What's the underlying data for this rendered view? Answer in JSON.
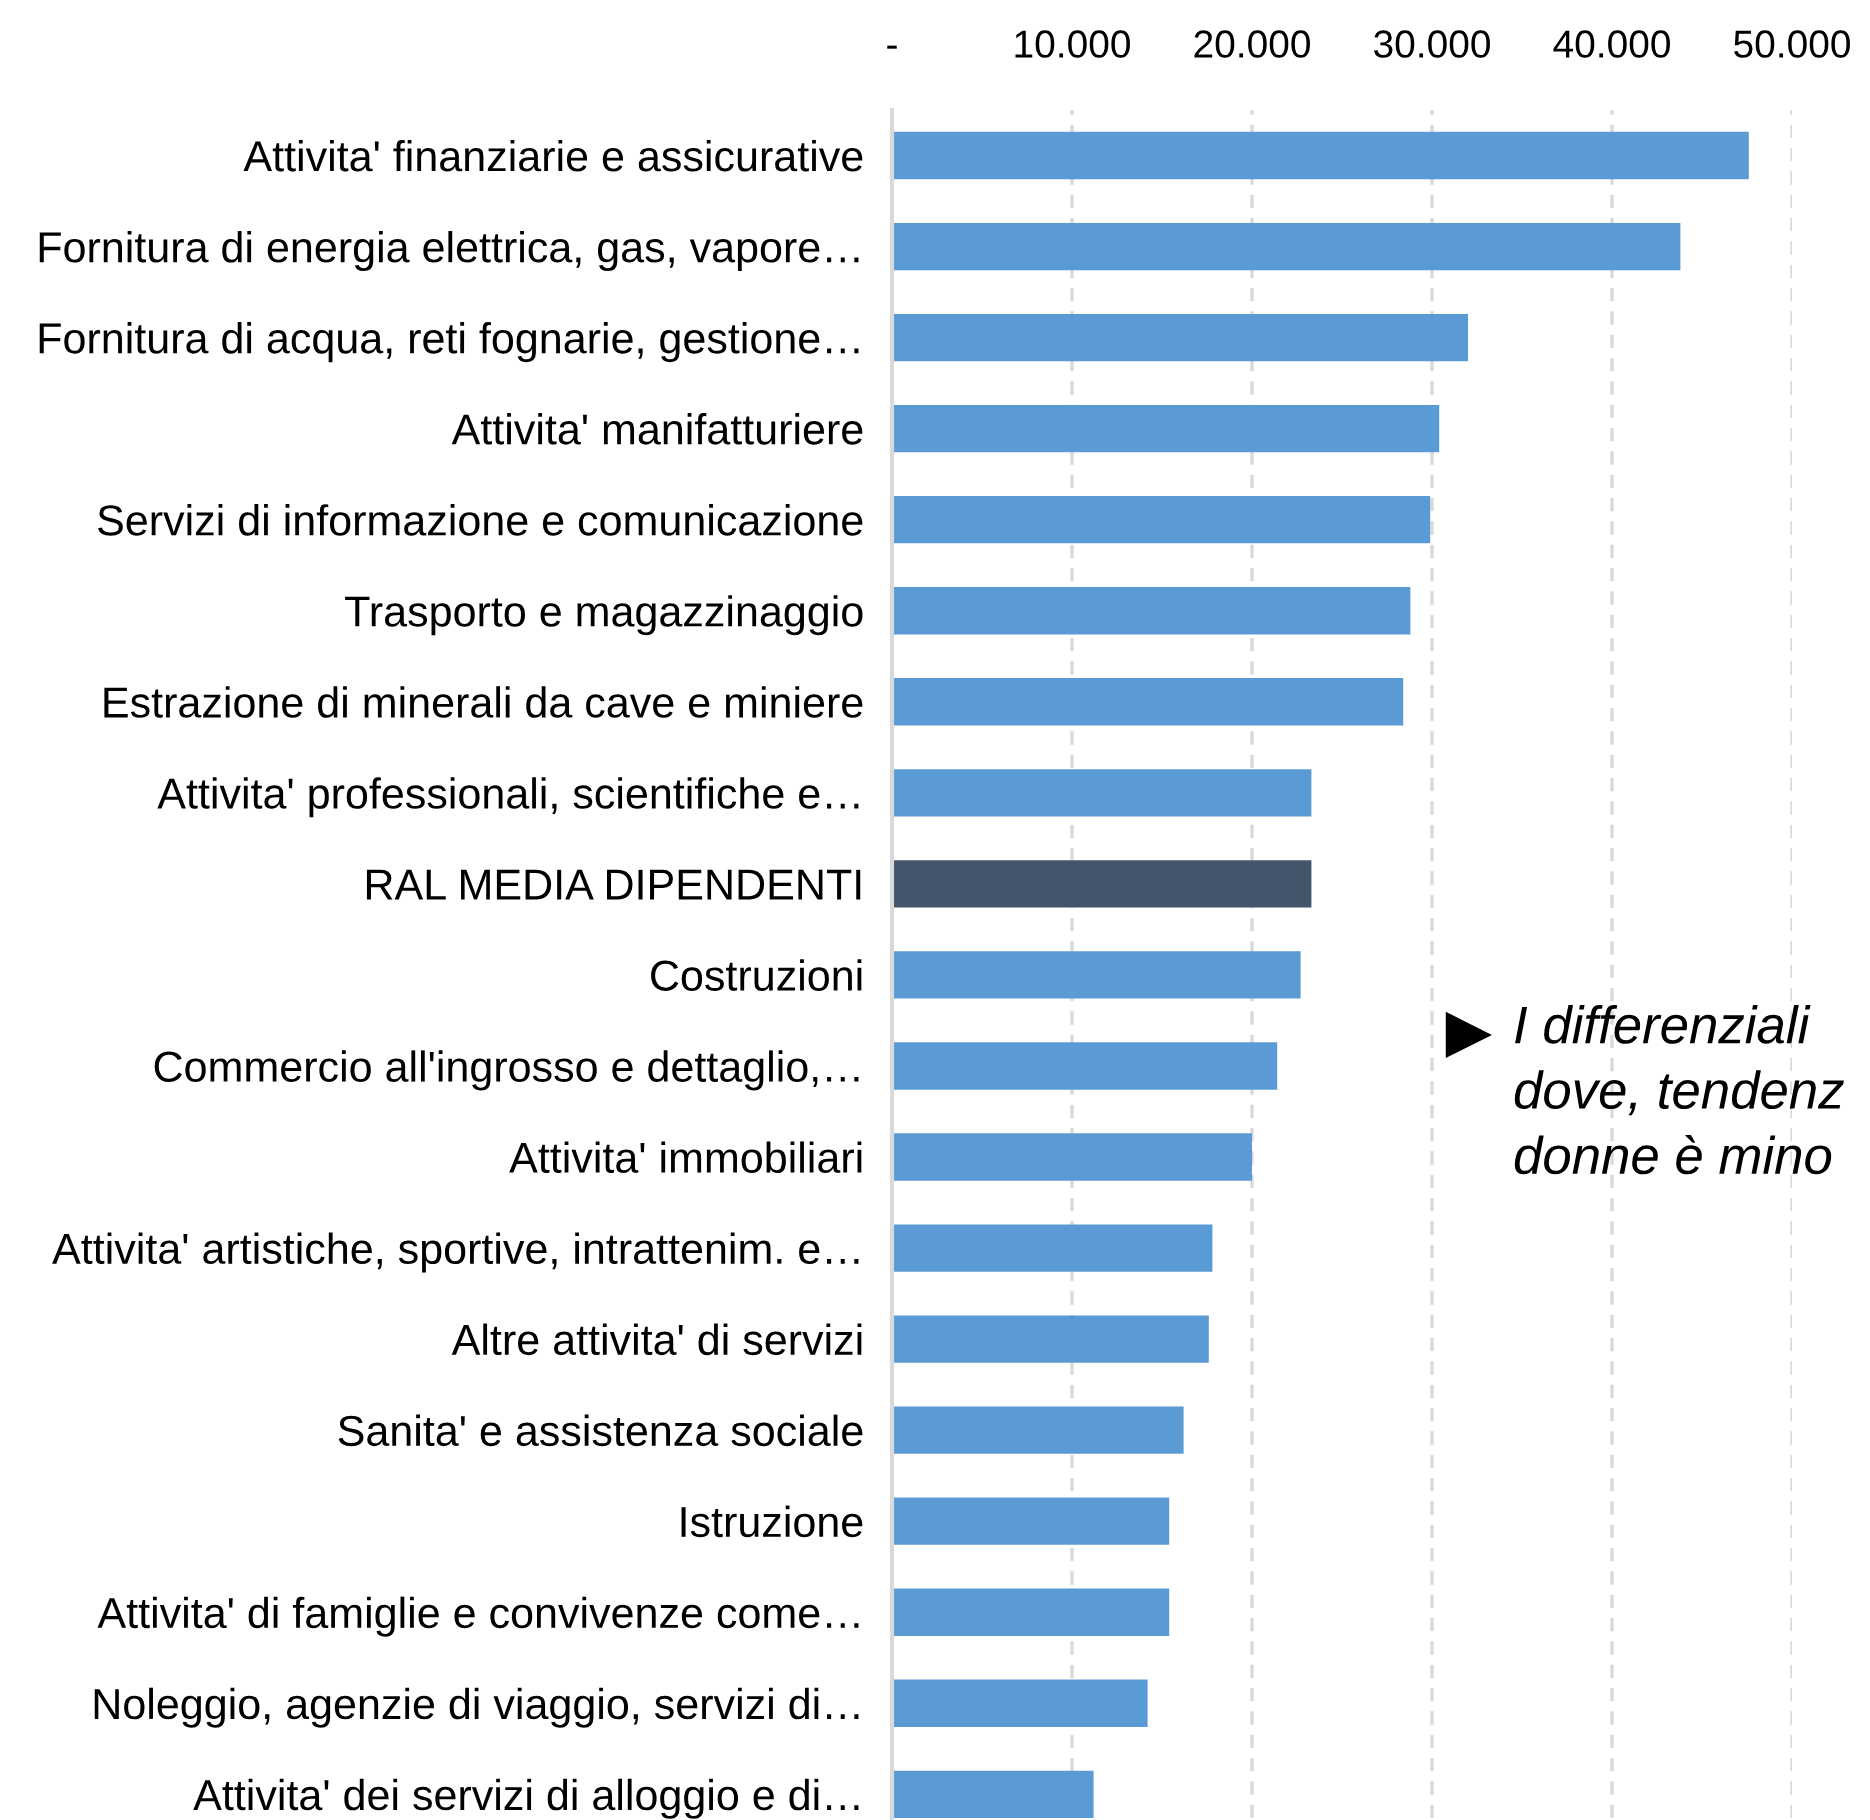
{
  "chart_data": {
    "type": "bar",
    "orientation": "horizontal",
    "categories": [
      "Attivita' finanziarie e assicurative",
      "Fornitura di energia elettrica, gas, vapore…",
      "Fornitura di acqua, reti fognarie, gestione…",
      "Attivita' manifatturiere",
      "Servizi di informazione e comunicazione",
      "Trasporto e magazzinaggio",
      "Estrazione di minerali da cave e miniere",
      "Attivita' professionali, scientifiche e…",
      "RAL MEDIA DIPENDENTI",
      "Costruzioni",
      "Commercio all'ingrosso e dettaglio,…",
      "Attivita' immobiliari",
      "Attivita' artistiche, sportive, intrattenim. e…",
      "Altre attivita' di servizi",
      "Sanita' e assistenza sociale",
      "Istruzione",
      "Attivita' di famiglie e convivenze come…",
      "Noleggio, agenzie di viaggio, servizi di…",
      "Attivita' dei servizi di alloggio e di…"
    ],
    "values": [
      47600,
      43800,
      32000,
      30400,
      29900,
      28800,
      28400,
      23300,
      23300,
      22700,
      21400,
      20000,
      17800,
      17600,
      16200,
      15400,
      15400,
      14200,
      11200
    ],
    "colors": [
      "#5b9bd5",
      "#5b9bd5",
      "#5b9bd5",
      "#5b9bd5",
      "#5b9bd5",
      "#5b9bd5",
      "#5b9bd5",
      "#5b9bd5",
      "#44546a",
      "#5b9bd5",
      "#5b9bd5",
      "#5b9bd5",
      "#5b9bd5",
      "#5b9bd5",
      "#5b9bd5",
      "#5b9bd5",
      "#5b9bd5",
      "#5b9bd5",
      "#5b9bd5"
    ],
    "xlim": [
      0,
      50000
    ],
    "xticks": [
      {
        "value": 0,
        "label": "-"
      },
      {
        "value": 10000,
        "label": "10.000"
      },
      {
        "value": 20000,
        "label": "20.000"
      },
      {
        "value": 30000,
        "label": "30.000"
      },
      {
        "value": 40000,
        "label": "40.000"
      },
      {
        "value": 50000,
        "label": "50.000"
      }
    ],
    "grid": "x",
    "annotations": [
      "I differenziali\ndove, tendenz\ndonne è mino"
    ]
  }
}
